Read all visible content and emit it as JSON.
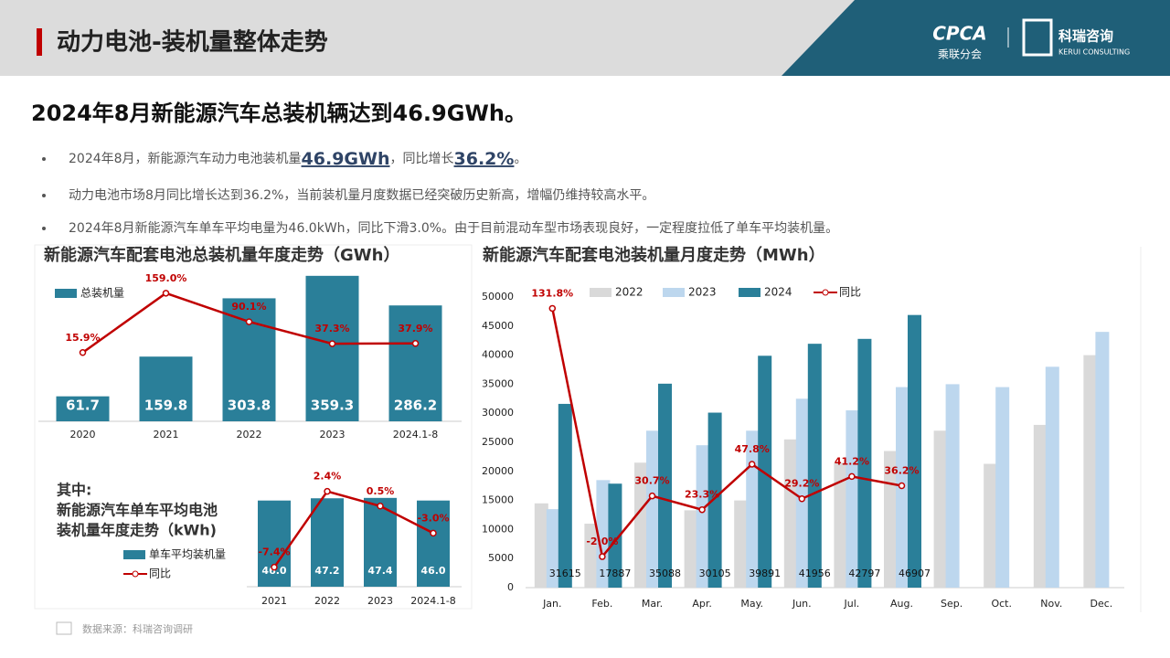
{
  "header": {
    "title": "动力电池-装机量整体走势",
    "logos": [
      "CPCA",
      "乘联分会",
      "科瑞咨询",
      "KERUI CONSULTING"
    ]
  },
  "headline": "2024年8月新能源汽车总装机辆达到46.9GWh。",
  "bullets": [
    [
      "2024年8月，新能源汽车动力电池装机量",
      "46.9GWh",
      "，同比增长",
      "36.2%",
      "。"
    ],
    [
      "动力电池市场8月同比增长达到36.2%，当前装机量月度数据已经突破历史新高，增幅仍维持较高水平。"
    ],
    [
      "2024年8月新能源汽车单车平均电量为46.0kWh，同比下滑3.0%。由于目前混动车型市场表现良好，一定程度拉低了单车平均装机量。"
    ]
  ],
  "source": "数据来源：科瑞咨询调研",
  "chart_data": [
    {
      "type": "bar",
      "title": "新能源汽车配套电池总装机量年度走势（GWh）",
      "categories": [
        "2020",
        "2021",
        "2022",
        "2023",
        "2024.1-8"
      ],
      "series": [
        {
          "name": "总装机量",
          "color": "#2a7f99",
          "values": [
            61.7,
            159.8,
            303.8,
            359.3,
            286.2
          ]
        },
        {
          "type": "line",
          "color": "#c00000",
          "values": [
            15.9,
            159.0,
            90.1,
            37.3,
            37.9
          ],
          "value_labels": [
            "15.9%",
            "159.0%",
            "90.1%",
            "37.3%",
            "37.9%"
          ]
        }
      ]
    },
    {
      "type": "bar",
      "title": [
        "其中:",
        "新能源汽车单车平均电池",
        "装机量年度走势（kWh)"
      ],
      "categories": [
        "2021",
        "2022",
        "2023",
        "2024.1-8"
      ],
      "series": [
        {
          "name": "单车平均装机量",
          "color": "#2a7f99",
          "values": [
            46.0,
            47.2,
            47.4,
            46.0
          ],
          "value_labels": [
            "46.0",
            "47.2",
            "47.4",
            "46.0"
          ]
        },
        {
          "name": "同比",
          "type": "line",
          "color": "#c00000",
          "values": [
            -7.4,
            2.4,
            0.5,
            -3.0
          ],
          "value_labels": [
            "-7.4%",
            "2.4%",
            "0.5%",
            "-3.0%"
          ]
        }
      ]
    },
    {
      "type": "bar",
      "title": "新能源汽车配套电池装机量月度走势（MWh）",
      "categories": [
        "Jan.",
        "Feb.",
        "Mar.",
        "Apr.",
        "May.",
        "Jun.",
        "Jul.",
        "Aug.",
        "Sep.",
        "Oct.",
        "Nov.",
        "Dec."
      ],
      "ylim": [
        0,
        50000
      ],
      "yticks": [
        0,
        5000,
        10000,
        15000,
        20000,
        25000,
        30000,
        35000,
        40000,
        45000,
        50000
      ],
      "grid": false,
      "series": [
        {
          "name": "2022",
          "color": "#d9d9d9",
          "values": [
            14500,
            11000,
            21500,
            13300,
            15000,
            25500,
            21500,
            23500,
            27000,
            21300,
            28000,
            40000
          ]
        },
        {
          "name": "2023",
          "color": "#bdd7ee",
          "values": [
            13500,
            18500,
            27000,
            24500,
            27000,
            32500,
            30500,
            34500,
            35000,
            34500,
            38000,
            44000
          ]
        },
        {
          "name": "2024",
          "color": "#2a7f99",
          "values": [
            31615,
            17887,
            35088,
            30105,
            39891,
            41956,
            42797,
            46907,
            null,
            null,
            null,
            null
          ]
        },
        {
          "name": "同比",
          "type": "line",
          "axis": "y2",
          "color": "#c00000",
          "values": [
            131.8,
            -2.0,
            30.7,
            23.3,
            47.8,
            29.2,
            41.2,
            36.2,
            null,
            null,
            null,
            null
          ],
          "value_labels": [
            "131.8%",
            "-2.0%",
            "30.7%",
            "23.3%",
            "47.8%",
            "29.2%",
            "41.2%",
            "36.2%",
            null,
            null,
            null,
            null
          ]
        }
      ]
    }
  ]
}
